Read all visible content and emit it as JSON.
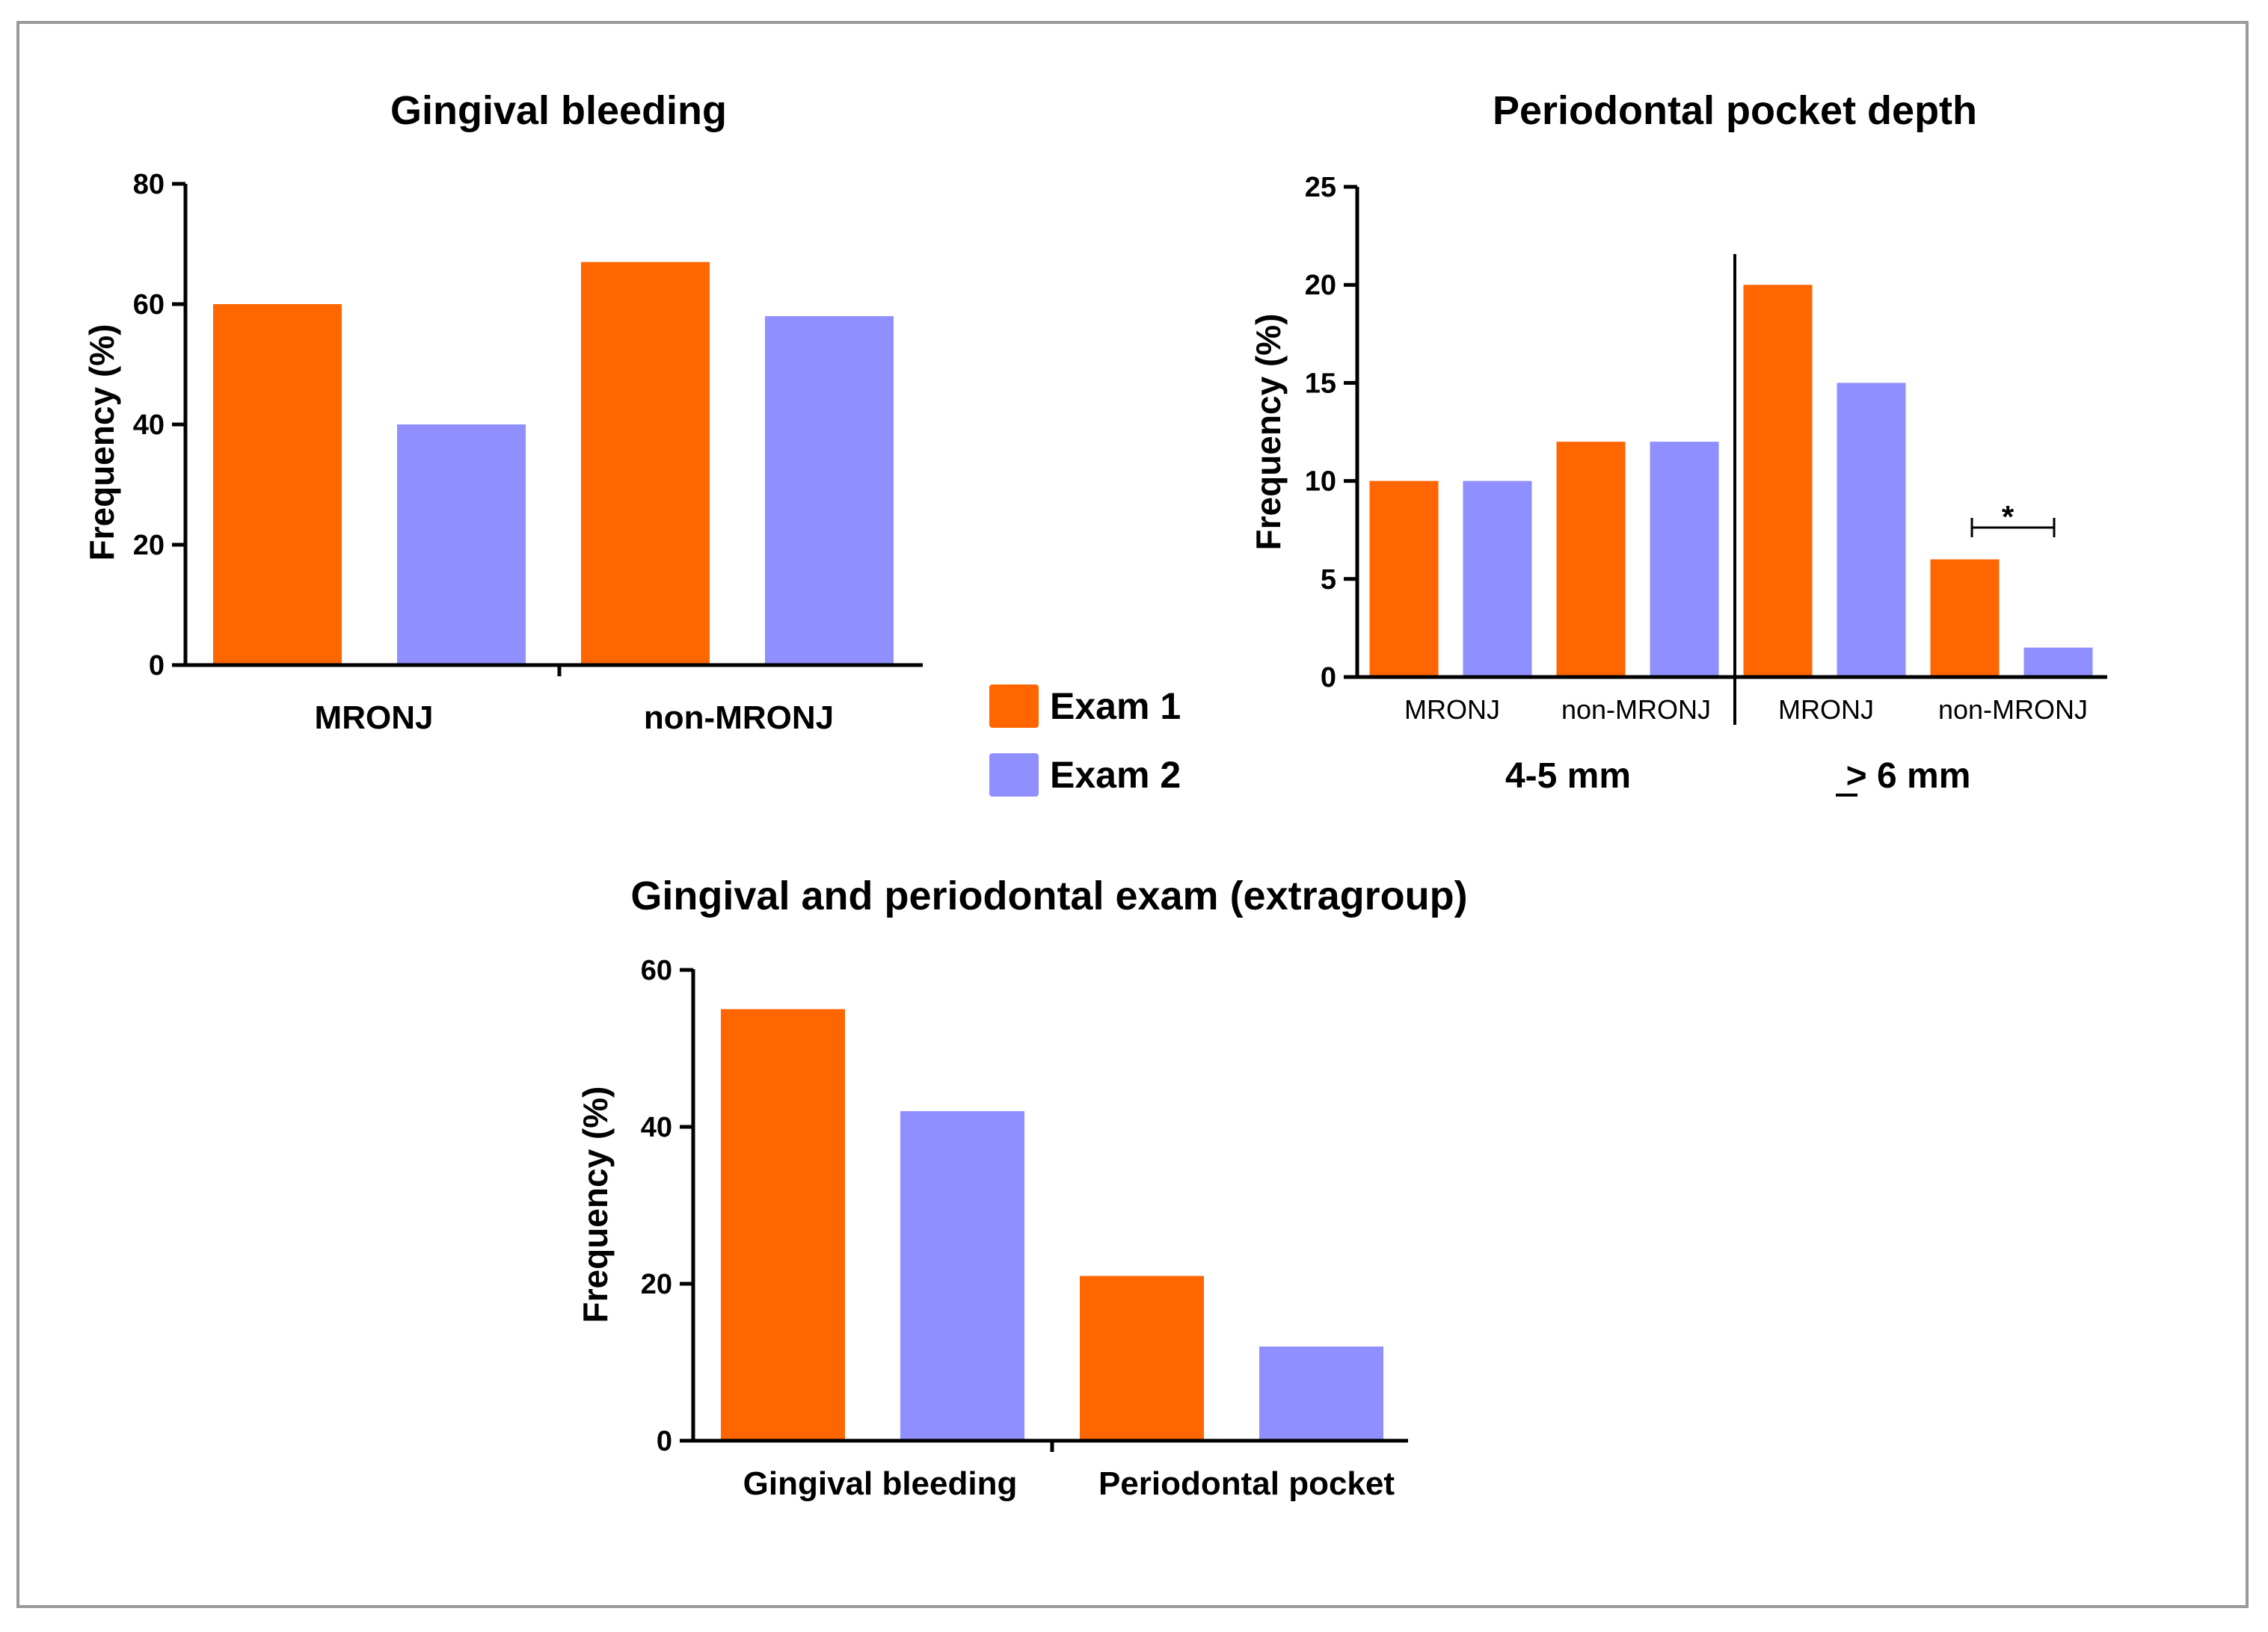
{
  "legend": {
    "entries": [
      {
        "label": "Exam 1",
        "color": "#ff6600"
      },
      {
        "label": "Exam 2",
        "color": "#8f8fff"
      }
    ]
  },
  "chart_data": [
    {
      "id": "gb",
      "type": "bar",
      "title": "Gingival bleeding",
      "ylabel": "Frequency (%)",
      "xlabel": "",
      "ylim": [
        0,
        80
      ],
      "yticks": [
        0,
        20,
        40,
        60,
        80
      ],
      "categories": [
        "MRONJ",
        "non-MRONJ"
      ],
      "series": [
        {
          "name": "Exam 1",
          "color": "#ff6600",
          "values": [
            60,
            67
          ]
        },
        {
          "name": "Exam 2",
          "color": "#8f8fff",
          "values": [
            40,
            58
          ]
        }
      ]
    },
    {
      "id": "ppd",
      "type": "bar",
      "title": "Periodontal pocket depth",
      "ylabel": "Frequency (%)",
      "xlabel": "",
      "ylim": [
        0,
        25
      ],
      "yticks": [
        0,
        5,
        10,
        15,
        20,
        25
      ],
      "groups": [
        {
          "label": "4-5 mm",
          "categories": [
            "MRONJ",
            "non-MRONJ"
          ]
        },
        {
          "label": "> 6 mm",
          "categories": [
            "MRONJ",
            "non-MRONJ"
          ]
        }
      ],
      "series": [
        {
          "name": "Exam 1",
          "color": "#ff6600",
          "values": [
            10,
            12,
            20,
            6
          ]
        },
        {
          "name": "Exam 2",
          "color": "#8f8fff",
          "values": [
            10,
            12,
            15,
            1.5
          ]
        }
      ],
      "annotations": [
        {
          "text": "*",
          "between": "non-MRONJ (> 6 mm) Exam 1 vs Exam 2"
        }
      ]
    },
    {
      "id": "ext",
      "type": "bar",
      "title": "Gingival and periodontal exam (extragroup)",
      "ylabel": "Frequency (%)",
      "xlabel": "",
      "ylim": [
        0,
        60
      ],
      "yticks": [
        0,
        20,
        40,
        60
      ],
      "categories": [
        "Gingival bleeding",
        "Periodontal pocket"
      ],
      "series": [
        {
          "name": "Exam 1",
          "color": "#ff6600",
          "values": [
            55,
            21
          ]
        },
        {
          "name": "Exam 2",
          "color": "#8f8fff",
          "values": [
            42,
            12
          ]
        }
      ]
    }
  ]
}
